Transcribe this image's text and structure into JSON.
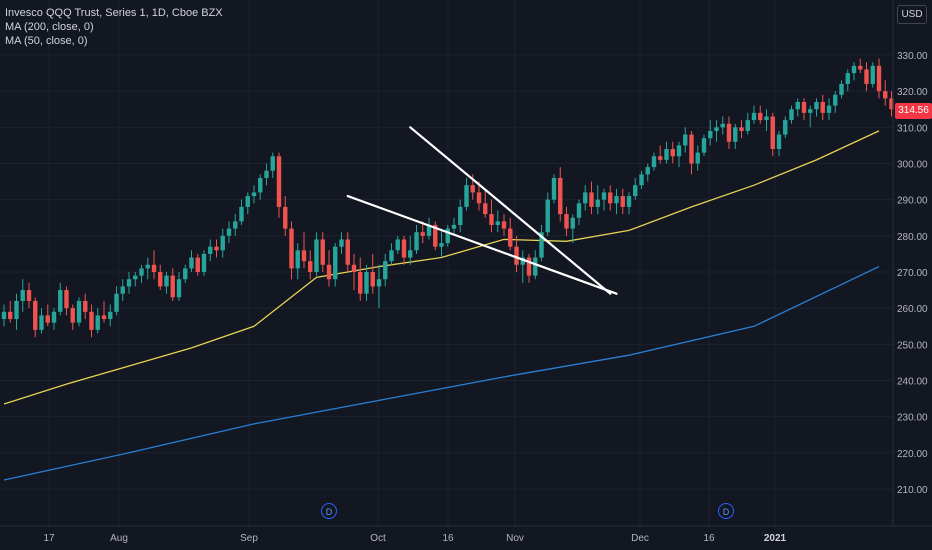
{
  "legend": {
    "symbol": "Invesco QQQ Trust, Series 1, 1D, Cboe BZX",
    "ma200": "MA (200, close, 0)",
    "ma50": "MA (50, close, 0)"
  },
  "currency": "USD",
  "last_price": "314.56",
  "chart_data": {
    "type": "candlestick",
    "ylim": [
      203,
      335
    ],
    "y_ticks": [
      "330.00",
      "320.00",
      "310.00",
      "300.00",
      "290.00",
      "280.00",
      "270.00",
      "260.00",
      "250.00",
      "240.00",
      "230.00",
      "220.00",
      "210.00"
    ],
    "x_ticks": [
      "17",
      "Aug",
      "Sep",
      "Oct",
      "16",
      "Nov",
      "Dec",
      "16",
      "2021"
    ],
    "x_tick_bold": [
      false,
      false,
      false,
      false,
      false,
      false,
      false,
      false,
      true
    ],
    "n_bars": 141,
    "colors": {
      "up": "#26a69a",
      "down": "#ef5350",
      "ma200": "#2a7fd4",
      "ma50": "#e6d155",
      "trendline": "#ffffff",
      "background": "#131722",
      "grid": "#1e222d"
    },
    "candles": [
      [
        257,
        261,
        255,
        259
      ],
      [
        259,
        262,
        256,
        257
      ],
      [
        257,
        264,
        254,
        262
      ],
      [
        262,
        268,
        259,
        265
      ],
      [
        265,
        267,
        260,
        262
      ],
      [
        262,
        263,
        252,
        254
      ],
      [
        254,
        260,
        253,
        258
      ],
      [
        258,
        261,
        255,
        256
      ],
      [
        256,
        260,
        254,
        259
      ],
      [
        259,
        267,
        258,
        265
      ],
      [
        265,
        266,
        258,
        260
      ],
      [
        260,
        261,
        254,
        256
      ],
      [
        256,
        263,
        255,
        262
      ],
      [
        262,
        264,
        257,
        259
      ],
      [
        259,
        261,
        252,
        254
      ],
      [
        254,
        260,
        253,
        258
      ],
      [
        258,
        262,
        256,
        257
      ],
      [
        257,
        261,
        255,
        259
      ],
      [
        259,
        266,
        258,
        264
      ],
      [
        264,
        268,
        262,
        266
      ],
      [
        266,
        270,
        264,
        268
      ],
      [
        268,
        270,
        266,
        269
      ],
      [
        269,
        272,
        267,
        271
      ],
      [
        271,
        274,
        268,
        272
      ],
      [
        272,
        276,
        268,
        270
      ],
      [
        270,
        272,
        265,
        266
      ],
      [
        266,
        270,
        264,
        269
      ],
      [
        269,
        271,
        262,
        263
      ],
      [
        263,
        270,
        262,
        268
      ],
      [
        268,
        272,
        267,
        271
      ],
      [
        271,
        276,
        270,
        274
      ],
      [
        274,
        275,
        269,
        270
      ],
      [
        270,
        276,
        269,
        275
      ],
      [
        275,
        279,
        273,
        277
      ],
      [
        277,
        279,
        274,
        276
      ],
      [
        276,
        282,
        274,
        280
      ],
      [
        280,
        284,
        278,
        282
      ],
      [
        282,
        286,
        280,
        284
      ],
      [
        284,
        290,
        283,
        288
      ],
      [
        288,
        292,
        286,
        291
      ],
      [
        291,
        294,
        289,
        292
      ],
      [
        292,
        297,
        290,
        296
      ],
      [
        296,
        300,
        294,
        298
      ],
      [
        298,
        303,
        296,
        302
      ],
      [
        302,
        303,
        285,
        288
      ],
      [
        288,
        291,
        280,
        282
      ],
      [
        282,
        284,
        268,
        271
      ],
      [
        271,
        278,
        268,
        276
      ],
      [
        276,
        281,
        271,
        273
      ],
      [
        273,
        276,
        268,
        270
      ],
      [
        270,
        281,
        269,
        279
      ],
      [
        279,
        281,
        270,
        272
      ],
      [
        272,
        276,
        266,
        268
      ],
      [
        268,
        278,
        266,
        277
      ],
      [
        277,
        281,
        275,
        279
      ],
      [
        279,
        281,
        270,
        272
      ],
      [
        272,
        275,
        265,
        270
      ],
      [
        270,
        274,
        262,
        264
      ],
      [
        264,
        272,
        262,
        270
      ],
      [
        270,
        275,
        264,
        266
      ],
      [
        266,
        272,
        260,
        268
      ],
      [
        268,
        275,
        266,
        273
      ],
      [
        273,
        278,
        272,
        276
      ],
      [
        276,
        280,
        275,
        279
      ],
      [
        279,
        280,
        272,
        274
      ],
      [
        274,
        280,
        272,
        276
      ],
      [
        276,
        283,
        275,
        281
      ],
      [
        281,
        284,
        278,
        280
      ],
      [
        280,
        285,
        279,
        283
      ],
      [
        283,
        284,
        276,
        277
      ],
      [
        277,
        282,
        274,
        278
      ],
      [
        278,
        283,
        277,
        282
      ],
      [
        282,
        285,
        280,
        283
      ],
      [
        283,
        290,
        281,
        288
      ],
      [
        288,
        296,
        287,
        294
      ],
      [
        294,
        297,
        290,
        292
      ],
      [
        292,
        295,
        287,
        289
      ],
      [
        289,
        293,
        285,
        286
      ],
      [
        286,
        290,
        281,
        283
      ],
      [
        283,
        287,
        281,
        284
      ],
      [
        284,
        286,
        280,
        282
      ],
      [
        282,
        285,
        276,
        277
      ],
      [
        277,
        280,
        270,
        272
      ],
      [
        272,
        276,
        267,
        274
      ],
      [
        274,
        275,
        267,
        269
      ],
      [
        269,
        276,
        268,
        274
      ],
      [
        274,
        283,
        273,
        281
      ],
      [
        281,
        292,
        280,
        290
      ],
      [
        290,
        297,
        289,
        296
      ],
      [
        296,
        299,
        284,
        286
      ],
      [
        286,
        288,
        280,
        282
      ],
      [
        282,
        286,
        278,
        285
      ],
      [
        285,
        290,
        283,
        289
      ],
      [
        289,
        294,
        287,
        292
      ],
      [
        292,
        295,
        286,
        288
      ],
      [
        288,
        294,
        286,
        290
      ],
      [
        290,
        293,
        287,
        292
      ],
      [
        292,
        294,
        287,
        289
      ],
      [
        289,
        293,
        286,
        291
      ],
      [
        291,
        293,
        286,
        288
      ],
      [
        288,
        292,
        286,
        291
      ],
      [
        291,
        296,
        290,
        294
      ],
      [
        294,
        298,
        293,
        297
      ],
      [
        297,
        300,
        295,
        299
      ],
      [
        299,
        303,
        298,
        302
      ],
      [
        302,
        305,
        300,
        301
      ],
      [
        301,
        306,
        300,
        304
      ],
      [
        304,
        306,
        300,
        302
      ],
      [
        302,
        306,
        299,
        305
      ],
      [
        305,
        310,
        303,
        308
      ],
      [
        308,
        309,
        297,
        300
      ],
      [
        300,
        305,
        298,
        303
      ],
      [
        303,
        308,
        302,
        307
      ],
      [
        307,
        312,
        305,
        309
      ],
      [
        309,
        312,
        306,
        310
      ],
      [
        310,
        313,
        308,
        311
      ],
      [
        311,
        313,
        304,
        306
      ],
      [
        306,
        311,
        304,
        310
      ],
      [
        310,
        312,
        307,
        309
      ],
      [
        309,
        314,
        308,
        312
      ],
      [
        312,
        316,
        311,
        314
      ],
      [
        314,
        316,
        311,
        312
      ],
      [
        312,
        315,
        309,
        313
      ],
      [
        313,
        314,
        302,
        304
      ],
      [
        304,
        309,
        302,
        308
      ],
      [
        308,
        313,
        307,
        312
      ],
      [
        312,
        316,
        311,
        315
      ],
      [
        315,
        318,
        313,
        317
      ],
      [
        317,
        318,
        312,
        314
      ],
      [
        314,
        316,
        310,
        315
      ],
      [
        315,
        318,
        313,
        317
      ],
      [
        317,
        319,
        312,
        314
      ],
      [
        314,
        318,
        312,
        316
      ],
      [
        316,
        320,
        314,
        319
      ],
      [
        319,
        323,
        318,
        322
      ],
      [
        322,
        326,
        320,
        325
      ],
      [
        325,
        328,
        323,
        327
      ],
      [
        327,
        329,
        325,
        326
      ],
      [
        326,
        328,
        320,
        322
      ],
      [
        322,
        328,
        321,
        327
      ],
      [
        327,
        329,
        318,
        320
      ],
      [
        320,
        323,
        316,
        318
      ],
      [
        318,
        320,
        313,
        315
      ]
    ],
    "ma50": [
      [
        0,
        233.5
      ],
      [
        10,
        239
      ],
      [
        20,
        244
      ],
      [
        30,
        249
      ],
      [
        40,
        255
      ],
      [
        50,
        268.5
      ],
      [
        60,
        271.5
      ],
      [
        70,
        274
      ],
      [
        80,
        279
      ],
      [
        90,
        278.5
      ],
      [
        100,
        281.5
      ],
      [
        110,
        288
      ],
      [
        120,
        294
      ],
      [
        130,
        301
      ],
      [
        140,
        309
      ]
    ],
    "ma200": [
      [
        0,
        212.5
      ],
      [
        20,
        220
      ],
      [
        40,
        228
      ],
      [
        60,
        234.5
      ],
      [
        80,
        241
      ],
      [
        100,
        247
      ],
      [
        120,
        255
      ],
      [
        140,
        271.5
      ]
    ],
    "trendlines": [
      [
        [
          55,
          291
        ],
        [
          98,
          264
        ]
      ],
      [
        [
          65,
          310
        ],
        [
          97,
          264
        ]
      ]
    ]
  }
}
